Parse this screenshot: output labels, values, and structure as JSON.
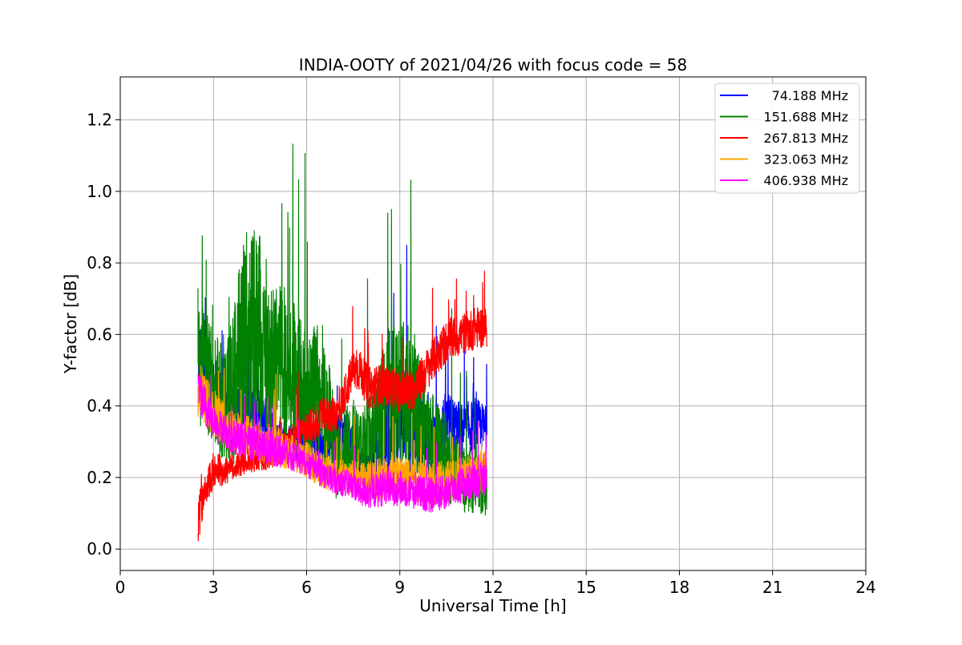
{
  "chart_data": {
    "type": "line",
    "title": "INDIA-OOTY of 2021/04/26 with focus code = 58",
    "xlabel": "Universal Time [h]",
    "ylabel": "Y-factor [dB]",
    "xlim": [
      0,
      24
    ],
    "ylim": [
      -0.06,
      1.32
    ],
    "xticks": [
      0,
      3,
      6,
      9,
      12,
      15,
      18,
      21,
      24
    ],
    "xtick_labels": [
      "0",
      "3",
      "6",
      "9",
      "12",
      "15",
      "18",
      "21",
      "24"
    ],
    "yticks": [
      0.0,
      0.2,
      0.4,
      0.6,
      0.8,
      1.0,
      1.2
    ],
    "ytick_labels": [
      "0.0",
      "0.2",
      "0.4",
      "0.6",
      "0.8",
      "1.0",
      "1.2"
    ],
    "grid": true,
    "legend_position": "top-right",
    "series": [
      {
        "name": "74.188 MHz",
        "color": "#0000ff",
        "x": [
          2.5,
          3.0,
          3.5,
          4.0,
          4.5,
          5.0,
          5.5,
          6.0,
          6.5,
          7.0,
          7.5,
          7.7,
          8.0,
          8.5,
          9.0,
          9.5,
          10.0,
          10.5,
          11.0,
          11.5,
          11.8
        ],
        "y": [
          0.55,
          0.44,
          0.38,
          0.4,
          0.38,
          0.32,
          0.29,
          0.3,
          0.28,
          0.33,
          0.3,
          0.23,
          0.2,
          0.3,
          0.38,
          0.33,
          0.3,
          0.35,
          0.33,
          0.35,
          0.33
        ],
        "amp": [
          0.1,
          0.1,
          0.07,
          0.07,
          0.07,
          0.06,
          0.05,
          0.07,
          0.06,
          0.06,
          0.06,
          0.04,
          0.08,
          0.12,
          0.14,
          0.14,
          0.1,
          0.09,
          0.08,
          0.07,
          0.07
        ]
      },
      {
        "name": "151.688 MHz",
        "color": "#008000",
        "x": [
          2.5,
          3.0,
          3.5,
          4.0,
          4.5,
          5.0,
          5.5,
          6.0,
          6.5,
          7.0,
          7.5,
          7.7,
          8.0,
          8.5,
          9.0,
          9.5,
          10.0,
          10.5,
          11.0,
          11.5,
          11.8
        ],
        "y": [
          0.55,
          0.45,
          0.4,
          0.6,
          0.6,
          0.5,
          0.5,
          0.4,
          0.45,
          0.25,
          0.3,
          0.28,
          0.3,
          0.4,
          0.45,
          0.4,
          0.3,
          0.25,
          0.2,
          0.18,
          0.15
        ],
        "amp": [
          0.2,
          0.15,
          0.2,
          0.3,
          0.3,
          0.25,
          0.22,
          0.2,
          0.2,
          0.12,
          0.12,
          0.1,
          0.14,
          0.2,
          0.22,
          0.2,
          0.15,
          0.12,
          0.1,
          0.08,
          0.06
        ]
      },
      {
        "name": "267.813 MHz",
        "color": "#ff0000",
        "x": [
          2.5,
          2.7,
          3.0,
          3.5,
          4.0,
          4.5,
          5.0,
          5.5,
          6.0,
          6.5,
          7.0,
          7.5,
          7.7,
          8.0,
          8.5,
          9.0,
          9.5,
          10.0,
          10.5,
          11.0,
          11.5,
          11.8
        ],
        "y": [
          0.08,
          0.15,
          0.22,
          0.22,
          0.25,
          0.25,
          0.27,
          0.3,
          0.33,
          0.37,
          0.38,
          0.5,
          0.5,
          0.45,
          0.46,
          0.44,
          0.45,
          0.52,
          0.58,
          0.6,
          0.62,
          0.62
        ],
        "amp": [
          0.07,
          0.05,
          0.05,
          0.04,
          0.04,
          0.04,
          0.04,
          0.05,
          0.05,
          0.05,
          0.05,
          0.06,
          0.06,
          0.06,
          0.06,
          0.06,
          0.06,
          0.06,
          0.06,
          0.06,
          0.06,
          0.06
        ]
      },
      {
        "name": "323.063 MHz",
        "color": "#ffa500",
        "x": [
          2.5,
          3.0,
          3.5,
          4.0,
          4.5,
          5.0,
          5.5,
          6.0,
          6.5,
          7.0,
          7.5,
          7.7,
          8.0,
          8.5,
          9.0,
          9.5,
          10.0,
          10.5,
          11.0,
          11.5,
          11.8
        ],
        "y": [
          0.45,
          0.38,
          0.33,
          0.32,
          0.3,
          0.29,
          0.27,
          0.25,
          0.22,
          0.2,
          0.2,
          0.19,
          0.19,
          0.2,
          0.2,
          0.19,
          0.18,
          0.19,
          0.2,
          0.21,
          0.22
        ],
        "amp": [
          0.08,
          0.07,
          0.06,
          0.06,
          0.06,
          0.06,
          0.05,
          0.05,
          0.05,
          0.05,
          0.05,
          0.05,
          0.06,
          0.06,
          0.06,
          0.06,
          0.06,
          0.06,
          0.06,
          0.06,
          0.06
        ]
      },
      {
        "name": "406.938 MHz",
        "color": "#ff00ff",
        "x": [
          2.5,
          3.0,
          3.5,
          4.0,
          4.5,
          5.0,
          5.5,
          6.0,
          6.5,
          7.0,
          7.5,
          7.7,
          8.0,
          8.5,
          9.0,
          9.5,
          10.0,
          10.5,
          11.0,
          11.5,
          11.8
        ],
        "y": [
          0.45,
          0.35,
          0.32,
          0.3,
          0.29,
          0.28,
          0.26,
          0.24,
          0.21,
          0.19,
          0.18,
          0.16,
          0.16,
          0.17,
          0.17,
          0.16,
          0.15,
          0.16,
          0.18,
          0.19,
          0.2
        ],
        "amp": [
          0.06,
          0.05,
          0.05,
          0.05,
          0.05,
          0.05,
          0.04,
          0.04,
          0.04,
          0.04,
          0.04,
          0.04,
          0.05,
          0.05,
          0.05,
          0.05,
          0.05,
          0.05,
          0.05,
          0.05,
          0.05
        ]
      }
    ]
  }
}
